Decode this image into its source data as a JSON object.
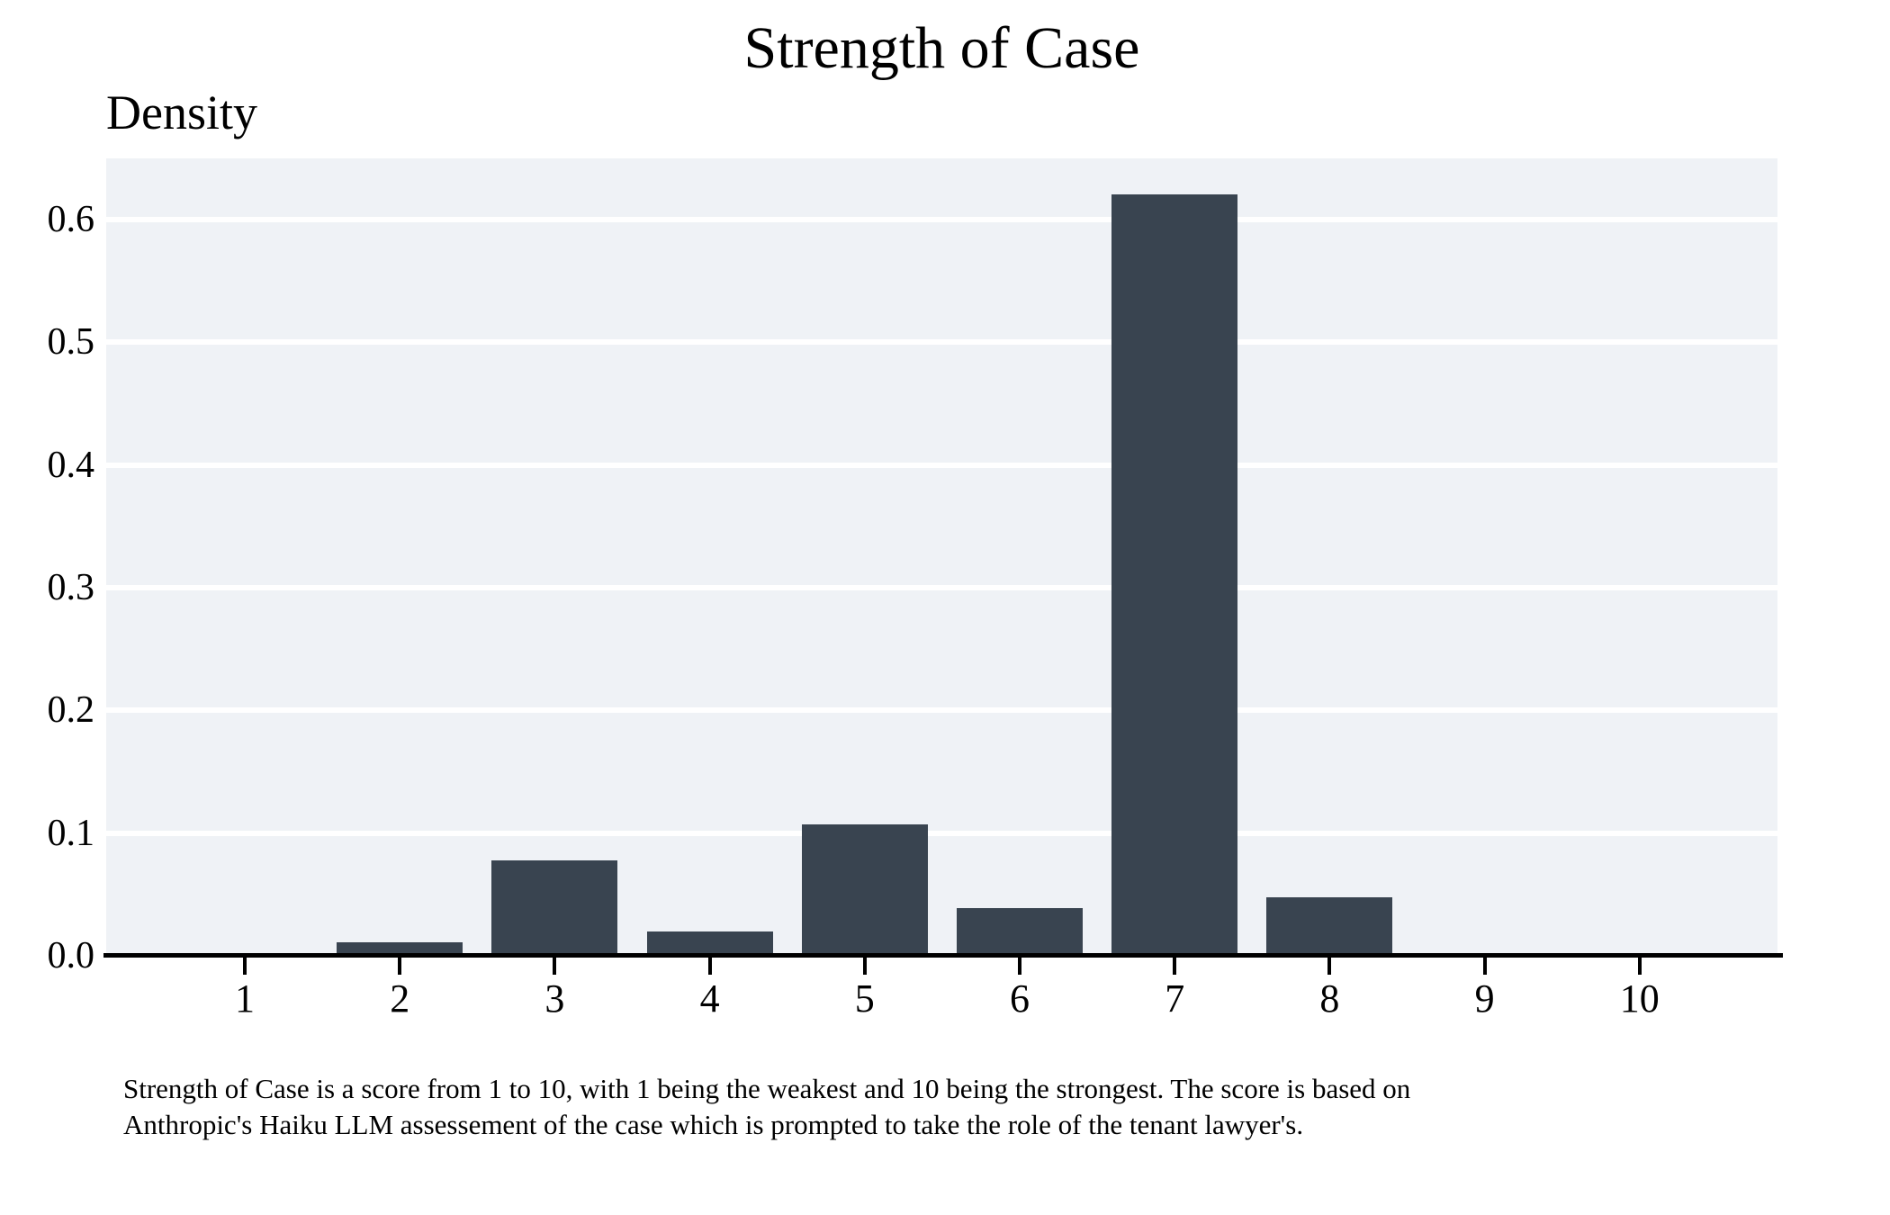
{
  "chart_data": {
    "type": "bar",
    "title": "Strength of Case",
    "ylabel": "Density",
    "xlabel": "",
    "categories": [
      "1",
      "2",
      "3",
      "4",
      "5",
      "6",
      "7",
      "8",
      "9",
      "10"
    ],
    "values": [
      0,
      0.011,
      0.078,
      0.02,
      0.107,
      0.039,
      0.621,
      0.048,
      0,
      0
    ],
    "ylim": [
      0,
      0.65
    ],
    "yticks": [
      0.0,
      0.1,
      0.2,
      0.3,
      0.4,
      0.5,
      0.6
    ],
    "grid": "horizontal gridlines at each y tick, legend none",
    "legend": "none",
    "colors": {
      "bar": "#394450",
      "panel_background": "#eff2f6",
      "gridline": "#ffffff",
      "axis": "#000000",
      "text": "#000000",
      "page_background": "#ffffff"
    }
  },
  "caption": {
    "lines": [
      "Strength of Case is a score from 1 to 10, with 1 being the weakest and 10 being the strongest. The score is based on",
      "Anthropic's Haiku LLM assessement of the case which is prompted to take the role of the tenant lawyer's."
    ]
  }
}
